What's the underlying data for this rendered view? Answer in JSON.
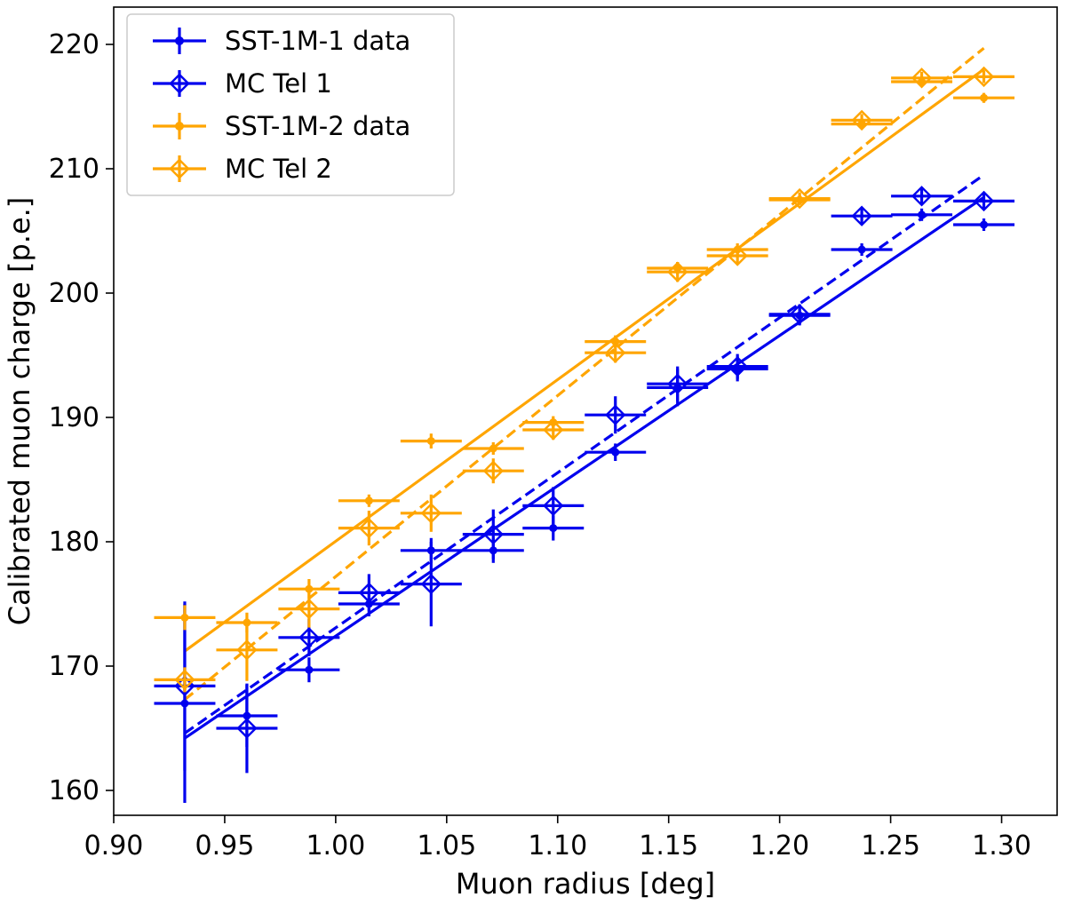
{
  "chart_data": {
    "type": "scatter",
    "title": "",
    "xlabel": "Muon radius [deg]",
    "ylabel": "Calibrated muon charge [p.e.]",
    "xlim": [
      0.9,
      1.325
    ],
    "ylim": [
      158,
      223
    ],
    "xticks": [
      0.9,
      0.95,
      1.0,
      1.05,
      1.1,
      1.15,
      1.2,
      1.25,
      1.3
    ],
    "xtick_labels": [
      "0.90",
      "0.95",
      "1.00",
      "1.05",
      "1.10",
      "1.15",
      "1.20",
      "1.25",
      "1.30"
    ],
    "yticks": [
      160,
      170,
      180,
      190,
      200,
      210,
      220
    ],
    "ytick_labels": [
      "160",
      "170",
      "180",
      "190",
      "200",
      "210",
      "220"
    ],
    "grid": false,
    "legend_position": "top-left",
    "bin_half_width": 0.0138,
    "x": [
      0.932,
      0.96,
      0.988,
      1.015,
      1.043,
      1.071,
      1.098,
      1.126,
      1.154,
      1.181,
      1.209,
      1.237,
      1.264,
      1.292
    ],
    "series": [
      {
        "name": "SST-1M-1 data",
        "color": "#0000ee",
        "marker": "dot",
        "y": [
          167.0,
          166.0,
          169.7,
          175.0,
          179.3,
          179.3,
          181.1,
          187.2,
          192.4,
          193.9,
          198.2,
          203.5,
          206.3,
          205.5
        ],
        "yerr": [
          8.0,
          2.5,
          1.0,
          1.0,
          1.0,
          1.0,
          1.0,
          0.7,
          1.5,
          1.0,
          0.8,
          0.5,
          0.5,
          0.5
        ]
      },
      {
        "name": "MC Tel 1",
        "color": "#0000ee",
        "marker": "diamond",
        "y": [
          168.4,
          165.0,
          172.3,
          175.9,
          176.6,
          180.6,
          182.9,
          190.2,
          192.7,
          194.1,
          198.3,
          206.2,
          207.8,
          207.4
        ],
        "yerr": [
          6.8,
          3.6,
          1.5,
          1.5,
          3.4,
          2.0,
          1.5,
          1.5,
          1.4,
          1.0,
          0.8,
          0.6,
          0.6,
          0.6
        ]
      },
      {
        "name": "SST-1M-2 data",
        "color": "#ffa500",
        "marker": "dot",
        "y": [
          173.9,
          173.5,
          176.2,
          183.3,
          188.1,
          187.5,
          189.6,
          196.1,
          202.0,
          203.5,
          207.5,
          213.6,
          217.0,
          215.7
        ],
        "yerr": [
          1.0,
          0.8,
          0.8,
          0.5,
          0.6,
          0.5,
          0.5,
          0.5,
          0.5,
          0.5,
          0.4,
          0.4,
          0.4,
          0.4
        ]
      },
      {
        "name": "MC Tel 2",
        "color": "#ffa500",
        "marker": "diamond",
        "y": [
          168.9,
          171.3,
          174.6,
          181.1,
          182.3,
          185.7,
          189.0,
          195.2,
          201.7,
          203.0,
          207.6,
          213.9,
          217.3,
          217.4
        ],
        "yerr": [
          1.0,
          2.5,
          1.5,
          1.4,
          1.5,
          1.0,
          0.8,
          0.8,
          0.8,
          0.6,
          0.5,
          0.5,
          0.5,
          0.5
        ]
      }
    ],
    "fit_lines": [
      {
        "color": "#0000ee",
        "style": "solid",
        "x": [
          0.932,
          1.292
        ],
        "y": [
          164.2,
          207.7
        ]
      },
      {
        "color": "#0000ee",
        "style": "dashed",
        "x": [
          0.932,
          1.292
        ],
        "y": [
          164.6,
          209.5
        ]
      },
      {
        "color": "#ffa500",
        "style": "solid",
        "x": [
          0.932,
          1.292
        ],
        "y": [
          171.2,
          218.0
        ]
      },
      {
        "color": "#ffa500",
        "style": "dashed",
        "x": [
          0.932,
          1.292
        ],
        "y": [
          167.3,
          219.7
        ]
      }
    ]
  }
}
